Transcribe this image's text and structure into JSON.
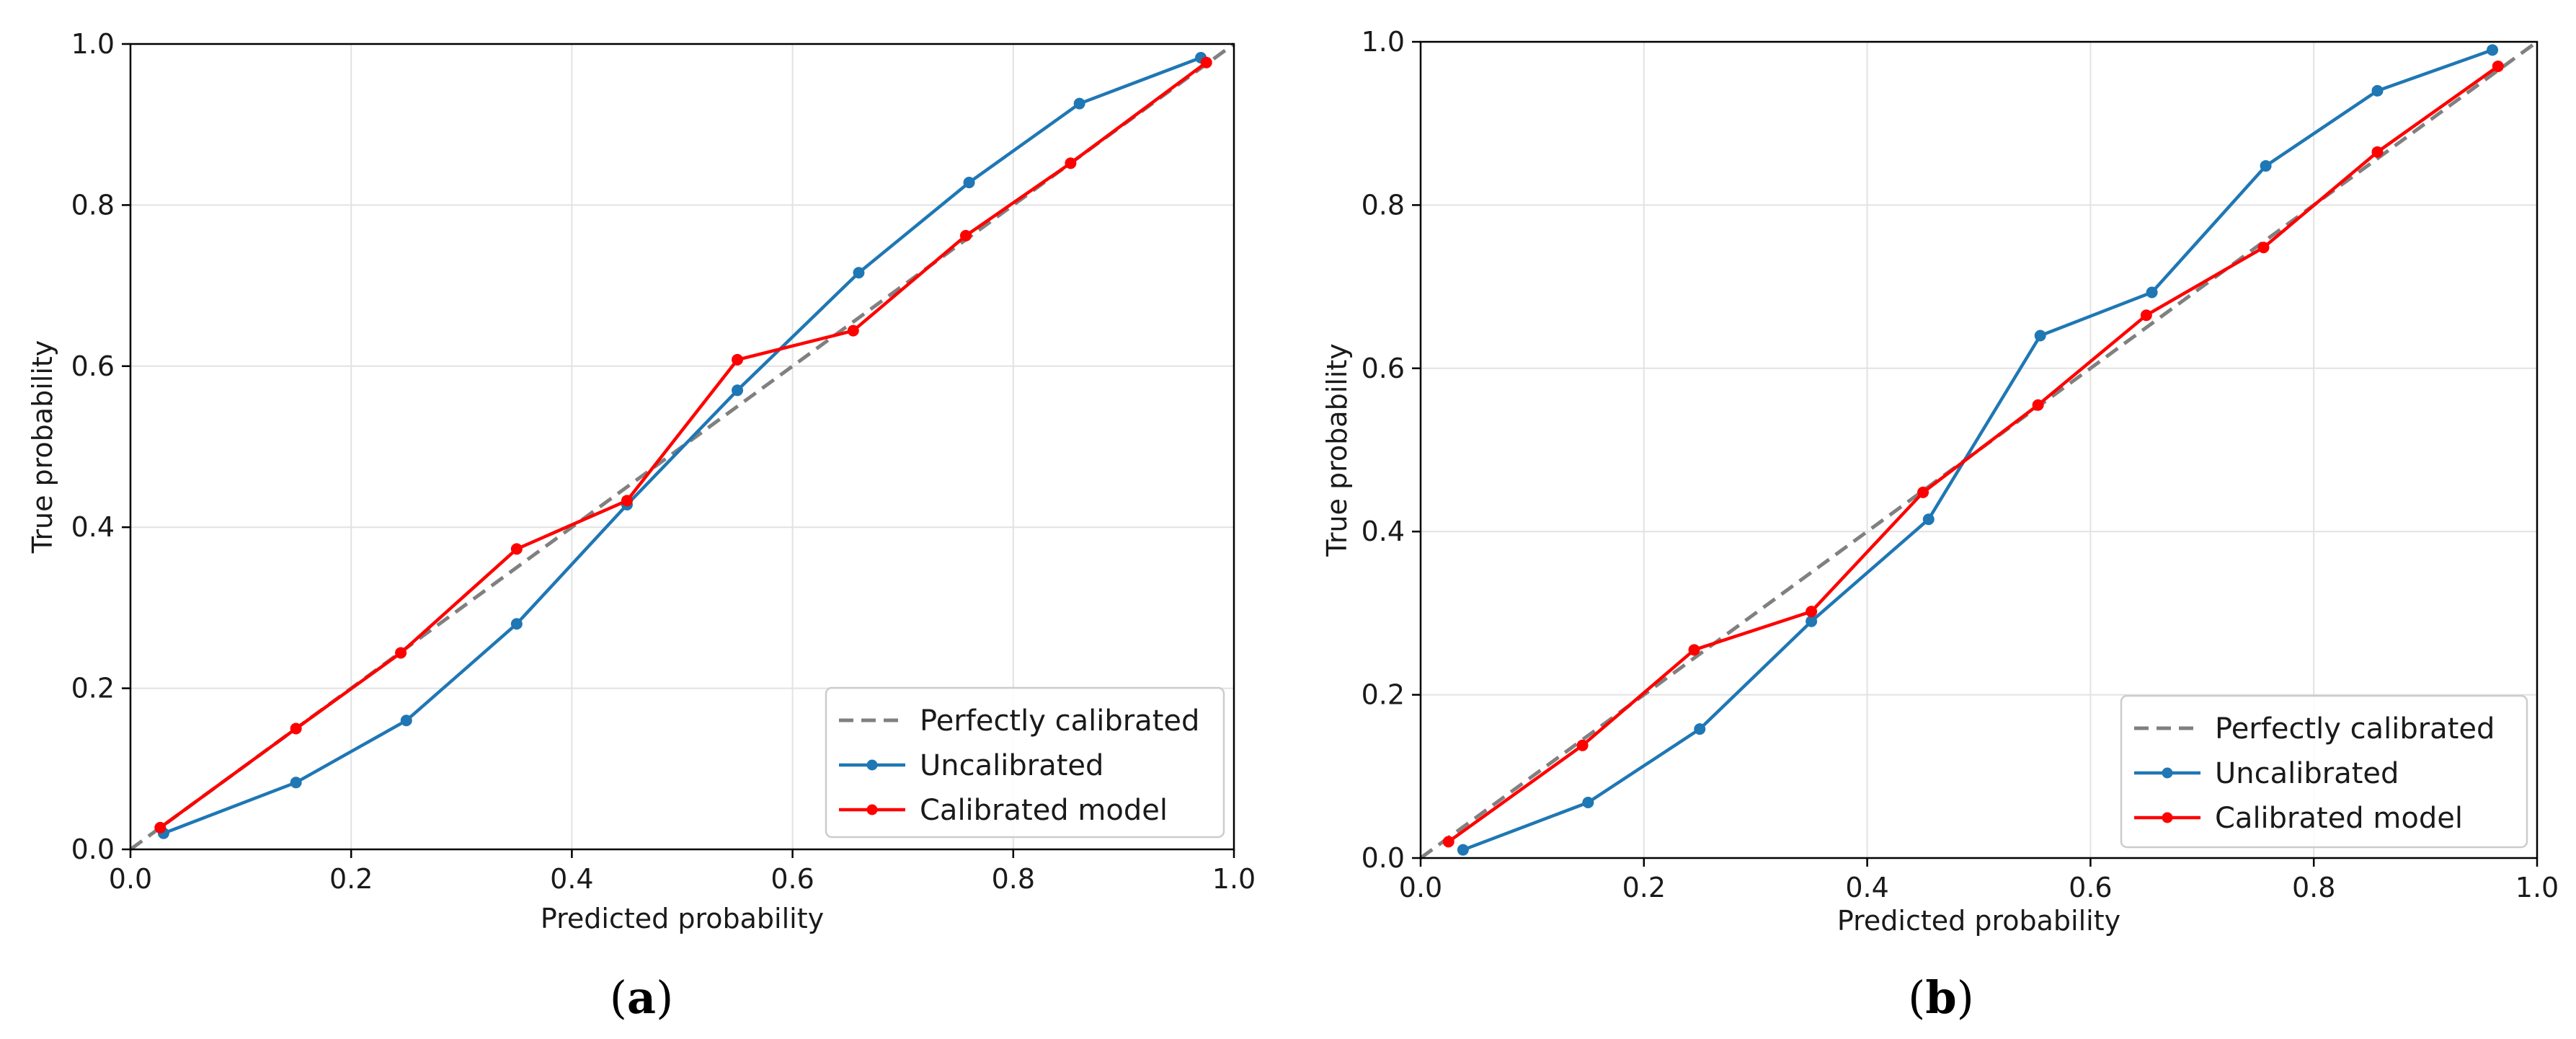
{
  "chart_data": [
    {
      "type": "line",
      "panel_label": "(a)",
      "title": "",
      "xlabel": "Predicted probability",
      "ylabel": "True probability",
      "xlim": [
        0.0,
        1.0
      ],
      "ylim": [
        0.0,
        1.0
      ],
      "xticks": [
        "0.0",
        "0.2",
        "0.4",
        "0.6",
        "0.8",
        "1.0"
      ],
      "yticks": [
        "0.0",
        "0.2",
        "0.4",
        "0.6",
        "0.8",
        "1.0"
      ],
      "grid": true,
      "legend_position": "bottom-right",
      "series": [
        {
          "name": "Perfectly calibrated",
          "style": "dashed",
          "color": "#808080",
          "markers": false,
          "x": [
            0.0,
            1.0
          ],
          "y": [
            0.0,
            1.0
          ]
        },
        {
          "name": "Uncalibrated",
          "style": "solid",
          "color": "#1f77b4",
          "markers": true,
          "x": [
            0.03,
            0.15,
            0.25,
            0.35,
            0.45,
            0.55,
            0.66,
            0.76,
            0.86,
            0.97
          ],
          "y": [
            0.02,
            0.083,
            0.16,
            0.28,
            0.428,
            0.57,
            0.716,
            0.828,
            0.926,
            0.983
          ]
        },
        {
          "name": "Calibrated model",
          "style": "solid",
          "color": "#ff0000",
          "markers": true,
          "x": [
            0.027,
            0.15,
            0.245,
            0.35,
            0.45,
            0.55,
            0.655,
            0.757,
            0.852,
            0.975
          ],
          "y": [
            0.027,
            0.15,
            0.244,
            0.373,
            0.433,
            0.608,
            0.644,
            0.762,
            0.852,
            0.977
          ]
        }
      ]
    },
    {
      "type": "line",
      "panel_label": "(b)",
      "title": "",
      "xlabel": "Predicted probability",
      "ylabel": "True probability",
      "xlim": [
        0.0,
        1.0
      ],
      "ylim": [
        0.0,
        1.0
      ],
      "xticks": [
        "0.0",
        "0.2",
        "0.4",
        "0.6",
        "0.8",
        "1.0"
      ],
      "yticks": [
        "0.0",
        "0.2",
        "0.4",
        "0.6",
        "0.8",
        "1.0"
      ],
      "grid": true,
      "legend_position": "bottom-right",
      "series": [
        {
          "name": "Perfectly calibrated",
          "style": "dashed",
          "color": "#808080",
          "markers": false,
          "x": [
            0.0,
            1.0
          ],
          "y": [
            0.0,
            1.0
          ]
        },
        {
          "name": "Uncalibrated",
          "style": "solid",
          "color": "#1f77b4",
          "markers": true,
          "x": [
            0.038,
            0.15,
            0.25,
            0.35,
            0.455,
            0.555,
            0.655,
            0.757,
            0.857,
            0.96
          ],
          "y": [
            0.01,
            0.068,
            0.158,
            0.29,
            0.415,
            0.64,
            0.693,
            0.848,
            0.94,
            0.99
          ]
        },
        {
          "name": "Calibrated model",
          "style": "solid",
          "color": "#ff0000",
          "markers": true,
          "x": [
            0.025,
            0.145,
            0.245,
            0.35,
            0.45,
            0.553,
            0.65,
            0.755,
            0.857,
            0.965
          ],
          "y": [
            0.02,
            0.138,
            0.255,
            0.302,
            0.448,
            0.555,
            0.665,
            0.748,
            0.865,
            0.97
          ]
        }
      ]
    }
  ]
}
